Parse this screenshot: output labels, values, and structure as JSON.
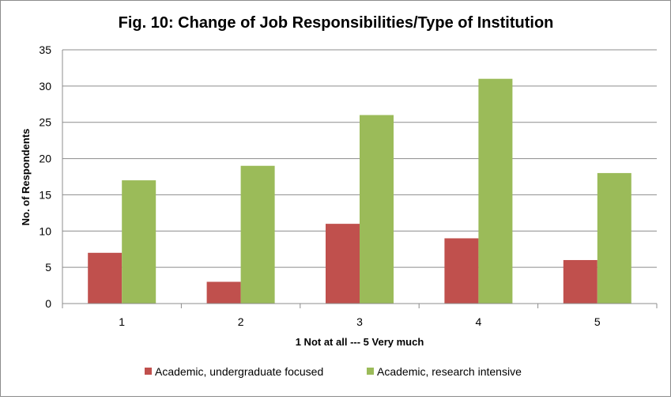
{
  "chart_data": {
    "type": "bar",
    "title": "Fig. 10: Change of  Job Responsibilities/Type of Institution",
    "xlabel": "1 Not at all --- 5 Very much",
    "ylabel": "No. of Respondents",
    "categories": [
      "1",
      "2",
      "3",
      "4",
      "5"
    ],
    "series": [
      {
        "name": "Academic, undergraduate focused",
        "values": [
          7,
          3,
          11,
          9,
          6
        ],
        "color": "#c0504d"
      },
      {
        "name": "Academic, research intensive",
        "values": [
          17,
          19,
          26,
          31,
          18
        ],
        "color": "#9bbb59"
      }
    ],
    "ylim": [
      0,
      35
    ],
    "yticks": [
      0,
      5,
      10,
      15,
      20,
      25,
      30,
      35
    ],
    "grid": true,
    "legend_position": "bottom"
  }
}
